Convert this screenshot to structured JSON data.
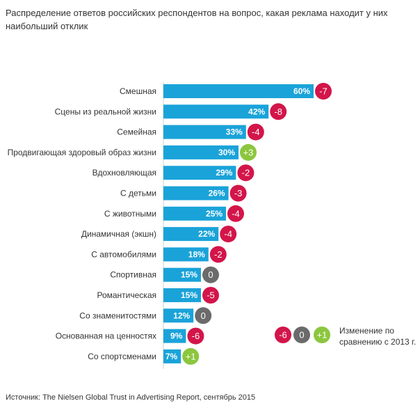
{
  "chart_data": {
    "type": "bar",
    "orientation": "horizontal",
    "title": "Распределение ответов российских респондентов на вопрос, какая реклама находит у них наибольший отклик",
    "categories": [
      "Смешная",
      "Сцены из реальной жизни",
      "Семейная",
      "Продвигающая здоровый образ жизни",
      "Вдохновляющая",
      "С детьми",
      "С животными",
      "Динамичная  (экшн)",
      "С автомобилями",
      "Спортивная",
      "Романтическая",
      "Со знаменитостями",
      "Основанная на ценностях",
      "Со спортсменами"
    ],
    "values": [
      60,
      42,
      33,
      30,
      29,
      26,
      25,
      22,
      18,
      15,
      15,
      12,
      9,
      7
    ],
    "value_labels": [
      "60%",
      "42%",
      "33%",
      "30%",
      "29%",
      "26%",
      "25%",
      "22%",
      "18%",
      "15%",
      "15%",
      "12%",
      "9%",
      "7%"
    ],
    "changes": [
      "-7",
      "-8",
      "-4",
      "+3",
      "-2",
      "-3",
      "-4",
      "-4",
      "-2",
      "0",
      "-5",
      "0",
      "-6",
      "+1"
    ],
    "xlim": [
      0,
      60
    ],
    "grid": false
  },
  "legend": {
    "items": [
      "-6",
      "0",
      "+1"
    ],
    "label": "Изменение по сравнению с 2013 г."
  },
  "source": "Источник: The Nielsen Global Trust in Advertising Report, сентябрь 2015",
  "colors": {
    "bar": "#1aa3d9",
    "negative": "#d3154a",
    "neutral": "#6b6b6b",
    "positive": "#8cc63e"
  }
}
